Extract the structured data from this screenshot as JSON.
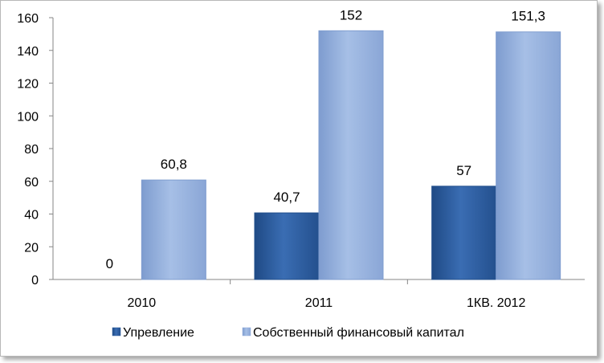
{
  "chart_data": {
    "type": "bar",
    "categories": [
      "2010",
      "2011",
      "1КВ. 2012"
    ],
    "series": [
      {
        "name": "Упревление",
        "values": [
          0,
          40.7,
          57
        ],
        "labels": [
          "0",
          "40,7",
          "57"
        ],
        "color": "#2f5f9e"
      },
      {
        "name": "Собственный финансовый капитал",
        "values": [
          60.8,
          152,
          151.3
        ],
        "labels": [
          "60,8",
          "152",
          "151,3"
        ],
        "color": "#93aedb"
      }
    ],
    "ylim": [
      0,
      160
    ],
    "yticks": [
      0,
      20,
      40,
      60,
      80,
      100,
      120,
      140,
      160
    ],
    "grid": false,
    "legend_position": "bottom"
  }
}
